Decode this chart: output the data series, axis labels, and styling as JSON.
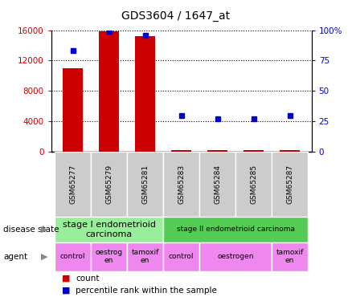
{
  "title": "GDS3604 / 1647_at",
  "samples": [
    "GSM65277",
    "GSM65279",
    "GSM65281",
    "GSM65283",
    "GSM65284",
    "GSM65285",
    "GSM65287"
  ],
  "count_values": [
    11000,
    15800,
    15200,
    200,
    200,
    200,
    200
  ],
  "percentile_values": [
    83,
    99,
    96,
    30,
    27,
    27,
    30
  ],
  "ylim_left": [
    0,
    16000
  ],
  "ylim_right": [
    0,
    100
  ],
  "yticks_left": [
    0,
    4000,
    8000,
    12000,
    16000
  ],
  "yticks_right": [
    0,
    25,
    50,
    75,
    100
  ],
  "yticklabels_left": [
    "0",
    "4000",
    "8000",
    "12000",
    "16000"
  ],
  "yticklabels_right": [
    "0",
    "25",
    "50",
    "75",
    "100%"
  ],
  "bar_color": "#cc0000",
  "dot_color": "#0000cc",
  "label_bg_color": "#cccccc",
  "ds_colors": [
    "#99ee99",
    "#55cc55"
  ],
  "agent_color": "#ee88ee",
  "disease_states": [
    {
      "label": "stage I endometrioid\ncarcinoma",
      "start": 0,
      "end": 3
    },
    {
      "label": "stage II endometrioid carcinoma",
      "start": 3,
      "end": 7
    }
  ],
  "agents": [
    {
      "label": "control",
      "start": 0,
      "end": 1
    },
    {
      "label": "oestrog\nen",
      "start": 1,
      "end": 2
    },
    {
      "label": "tamoxif\nen",
      "start": 2,
      "end": 3
    },
    {
      "label": "control",
      "start": 3,
      "end": 4
    },
    {
      "label": "oestrogen",
      "start": 4,
      "end": 6
    },
    {
      "label": "tamoxif\nen",
      "start": 6,
      "end": 7
    }
  ],
  "left_label_color": "#cc0000",
  "right_label_color": "#0000cc",
  "legend_count_color": "#cc0000",
  "legend_pct_color": "#0000cc"
}
